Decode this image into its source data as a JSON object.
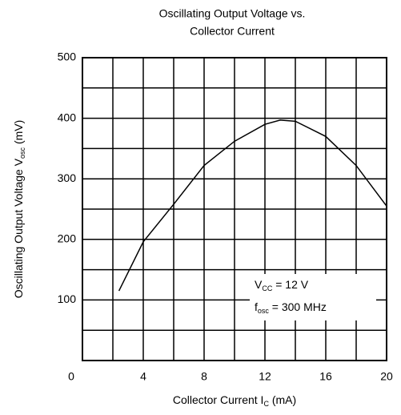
{
  "chart_data": {
    "type": "line",
    "title": [
      "Oscillating Output Voltage vs.",
      "Collector Current"
    ],
    "x_label": {
      "main": "Collector Current  I",
      "sub": "C",
      "rest": "  (mA)"
    },
    "y_label": {
      "main": "Oscillating Output Voltage  V",
      "sub": "osc",
      "rest": "  (mV)"
    },
    "annotations": [
      {
        "main": "V",
        "sub": "CC",
        "rest": " = 12 V"
      },
      {
        "main": "f",
        "sub": "osc",
        "rest": " = 300 MHz"
      }
    ],
    "x": [
      2.4,
      4,
      6,
      8,
      10,
      12,
      13,
      14,
      16,
      18,
      20
    ],
    "series": [
      {
        "color": "#000000",
        "values": [
          115,
          196,
          258,
          322,
          362,
          390,
          397,
          395,
          370,
          322,
          255
        ]
      }
    ],
    "xlim": [
      0,
      20
    ],
    "ylim": [
      0,
      500
    ],
    "xticks": [
      0,
      4,
      8,
      12,
      16,
      20
    ],
    "yticks": [
      100,
      200,
      300,
      400,
      500
    ],
    "xgrid": [
      0,
      2,
      4,
      6,
      8,
      10,
      12,
      14,
      16,
      18,
      20
    ],
    "ygrid": [
      0,
      50,
      100,
      150,
      200,
      250,
      300,
      350,
      400,
      450,
      500
    ],
    "grid": true
  }
}
